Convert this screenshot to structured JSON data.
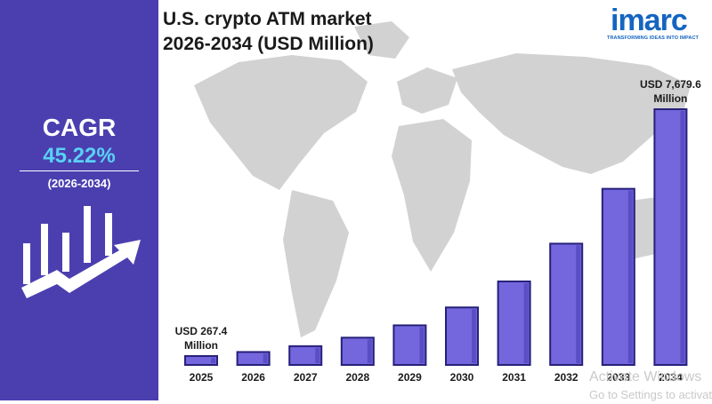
{
  "sidebar": {
    "cagr_label": "CAGR",
    "cagr_value": "45.22%",
    "period": "(2026-2034)"
  },
  "brand": {
    "name": "imarc",
    "tagline": "TRANSFORMING IDEAS INTO IMPACT"
  },
  "watermark": {
    "line1": "Activate Windows",
    "line2": "Go to Settings to activate"
  },
  "colors": {
    "panel": "#4b3fb0",
    "accent": "#5ad1f5",
    "bar_fill": "#7467dd",
    "bar_edge": "#27207a",
    "map": "#d2d2d2"
  },
  "chart_data": {
    "type": "bar",
    "title": "U.S. crypto ATM market\n2026-2034 (USD Million)",
    "xlabel": "",
    "ylabel": "",
    "categories": [
      "2025",
      "2026",
      "2027",
      "2028",
      "2029",
      "2030",
      "2031",
      "2032",
      "2033",
      "2034"
    ],
    "values": [
      267.4,
      388.3,
      563.9,
      818.9,
      1189.3,
      1727.2,
      2508.3,
      3642.5,
      5290.0,
      7679.6
    ],
    "ylim": [
      0,
      8000
    ],
    "grid": false,
    "axes_visible": false,
    "annotations": [
      {
        "category": "2025",
        "lines": [
          "USD 267.4",
          "Million"
        ]
      },
      {
        "category": "2034",
        "lines": [
          "USD 7,679.6",
          "Million"
        ]
      }
    ]
  }
}
